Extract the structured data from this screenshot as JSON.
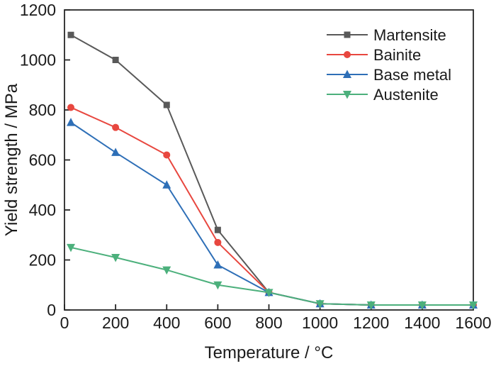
{
  "figure": {
    "background": "#ffffff",
    "axis_color": "#262626",
    "text_color": "#1a1a1a"
  },
  "chart_data": {
    "type": "line",
    "title": "",
    "xlabel": "Temperature / °C",
    "ylabel": "Yield strength / MPa",
    "xlim": [
      0,
      1600
    ],
    "ylim": [
      0,
      1200
    ],
    "xticks": [
      0,
      200,
      400,
      600,
      800,
      1000,
      1200,
      1400,
      1600
    ],
    "yticks": [
      0,
      200,
      400,
      600,
      800,
      1000,
      1200
    ],
    "grid": false,
    "legend_position": "top-right-inside",
    "x": [
      25,
      200,
      400,
      600,
      800,
      1000,
      1200,
      1400,
      1600
    ],
    "series": [
      {
        "name": "Martensite",
        "color": "#595959",
        "marker": "square",
        "values": [
          1100,
          1000,
          820,
          320,
          70,
          25,
          20,
          20,
          20
        ]
      },
      {
        "name": "Bainite",
        "color": "#e8473f",
        "marker": "circle",
        "values": [
          810,
          730,
          620,
          270,
          70,
          25,
          20,
          20,
          20
        ]
      },
      {
        "name": "Base metal",
        "color": "#2e6fb7",
        "marker": "triangle-up",
        "values": [
          750,
          630,
          500,
          180,
          70,
          25,
          20,
          20,
          20
        ]
      },
      {
        "name": "Austenite",
        "color": "#4cb07c",
        "marker": "triangle-down",
        "values": [
          250,
          210,
          160,
          100,
          70,
          25,
          20,
          20,
          20
        ]
      }
    ]
  }
}
